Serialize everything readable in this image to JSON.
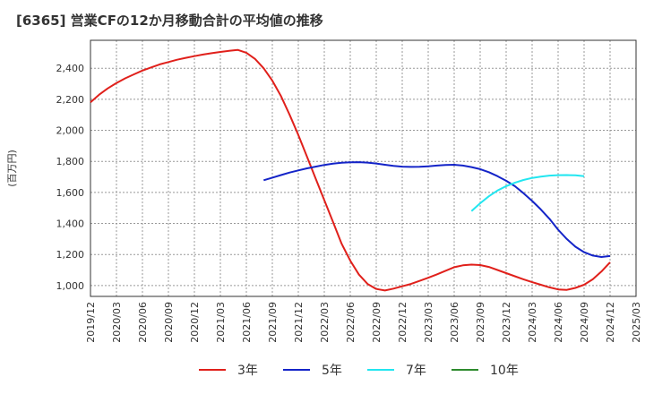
{
  "title": "[6365]  営業CFの12か月移動合計の平均値の推移",
  "chart_data": {
    "type": "line",
    "title": "[6365]  営業CFの12か月移動合計の平均値の推移",
    "ylabel": "(百万円)",
    "xlabel": "",
    "ylim": [
      930,
      2580
    ],
    "yticks": [
      1000,
      1200,
      1400,
      1600,
      1800,
      2000,
      2200,
      2400
    ],
    "ytick_labels": [
      "1,000",
      "1,200",
      "1,400",
      "1,600",
      "1,800",
      "2,000",
      "2,200",
      "2,400"
    ],
    "xticks": [
      "2019/12",
      "2020/03",
      "2020/06",
      "2020/09",
      "2020/12",
      "2021/03",
      "2021/06",
      "2021/09",
      "2021/12",
      "2022/03",
      "2022/06",
      "2022/09",
      "2022/12",
      "2023/03",
      "2023/06",
      "2023/09",
      "2023/12",
      "2024/03",
      "2024/06",
      "2024/09",
      "2024/12",
      "2025/03"
    ],
    "grid": true,
    "legend_position": "bottom",
    "series": [
      {
        "name": "3年",
        "color": "#e0201b",
        "start": "2019/12",
        "values": [
          2180,
          2230,
          2270,
          2305,
          2335,
          2360,
          2385,
          2405,
          2425,
          2440,
          2455,
          2467,
          2478,
          2488,
          2497,
          2505,
          2512,
          2518,
          2500,
          2460,
          2400,
          2320,
          2220,
          2100,
          1970,
          1830,
          1690,
          1550,
          1410,
          1270,
          1160,
          1070,
          1010,
          978,
          968,
          980,
          995,
          1010,
          1030,
          1050,
          1072,
          1095,
          1118,
          1130,
          1135,
          1132,
          1120,
          1100,
          1080,
          1060,
          1040,
          1022,
          1005,
          988,
          975,
          972,
          985,
          1005,
          1040,
          1090,
          1150
        ]
      },
      {
        "name": "5年",
        "color": "#1424c8",
        "start": "2021/08",
        "values": [
          1678,
          1695,
          1712,
          1728,
          1742,
          1755,
          1766,
          1777,
          1785,
          1791,
          1794,
          1795,
          1792,
          1786,
          1778,
          1771,
          1766,
          1764,
          1765,
          1768,
          1773,
          1777,
          1778,
          1773,
          1763,
          1750,
          1730,
          1705,
          1675,
          1640,
          1595,
          1545,
          1490,
          1430,
          1360,
          1300,
          1250,
          1215,
          1193,
          1184,
          1190
        ]
      },
      {
        "name": "7年",
        "color": "#22e6f0",
        "start": "2023/08",
        "values": [
          1480,
          1530,
          1575,
          1612,
          1640,
          1662,
          1680,
          1693,
          1702,
          1708,
          1711,
          1712,
          1710,
          1704
        ]
      },
      {
        "name": "10年",
        "color": "#2e8b2e",
        "start": "2019/12",
        "values": []
      }
    ]
  }
}
